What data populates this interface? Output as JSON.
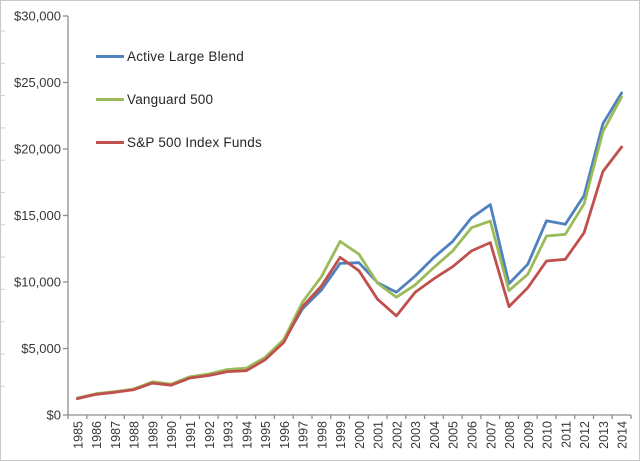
{
  "figure": {
    "background": "#ffffff",
    "border_color": "#c9c9c9",
    "axis_color": "#8f8f8f",
    "text_color": "#383838"
  },
  "legend": {
    "items": [
      {
        "label": "Active Large Blend",
        "color": "#4F81BD"
      },
      {
        "label": "Vanguard 500",
        "color": "#9BBB59"
      },
      {
        "label": "S&P 500 Index Funds",
        "color": "#C0504D"
      }
    ]
  },
  "chart_data": {
    "type": "line",
    "title": "",
    "xlabel": "",
    "ylabel": "",
    "grid": false,
    "legend_position": "top-left-inside",
    "ylim": [
      0,
      30000
    ],
    "x": [
      1985,
      1986,
      1987,
      1988,
      1989,
      1990,
      1991,
      1992,
      1993,
      1994,
      1995,
      1996,
      1997,
      1998,
      1999,
      2000,
      2001,
      2002,
      2003,
      2004,
      2005,
      2006,
      2007,
      2008,
      2009,
      2010,
      2011,
      2012,
      2013,
      2014
    ],
    "y_ticks": [
      {
        "label": "$0",
        "value": 0
      },
      {
        "label": "$5,000",
        "value": 5000
      },
      {
        "label": "$10,000",
        "value": 10000
      },
      {
        "label": "$15,000",
        "value": 15000
      },
      {
        "label": "$20,000",
        "value": 20000
      },
      {
        "label": "$25,000",
        "value": 25000
      },
      {
        "label": "$30,000",
        "value": 30000
      }
    ],
    "series": [
      {
        "name": "Active Large Blend",
        "color": "#4F81BD",
        "values": [
          1250,
          1580,
          1740,
          1930,
          2450,
          2280,
          2830,
          3020,
          3320,
          3390,
          4230,
          5570,
          8000,
          9400,
          11400,
          11450,
          9950,
          9230,
          10450,
          11850,
          13050,
          14830,
          15820,
          9880,
          11340,
          14600,
          14340,
          16500,
          21900,
          24210
        ]
      },
      {
        "name": "Vanguard 500",
        "color": "#9BBB59",
        "values": [
          1280,
          1600,
          1760,
          1950,
          2500,
          2320,
          2880,
          3080,
          3420,
          3520,
          4330,
          5680,
          8500,
          10400,
          13050,
          12100,
          9900,
          8860,
          9780,
          11100,
          12340,
          14080,
          14580,
          9350,
          10580,
          13460,
          13590,
          15880,
          21300,
          23910
        ]
      },
      {
        "name": "S&P 500 Index Funds",
        "color": "#C0504D",
        "values": [
          1230,
          1560,
          1710,
          1900,
          2400,
          2240,
          2780,
          2970,
          3260,
          3330,
          4150,
          5460,
          8150,
          9700,
          11850,
          10850,
          8700,
          7450,
          9230,
          10250,
          11150,
          12340,
          12960,
          8150,
          9570,
          11580,
          11710,
          13710,
          18310,
          20150
        ]
      }
    ]
  }
}
